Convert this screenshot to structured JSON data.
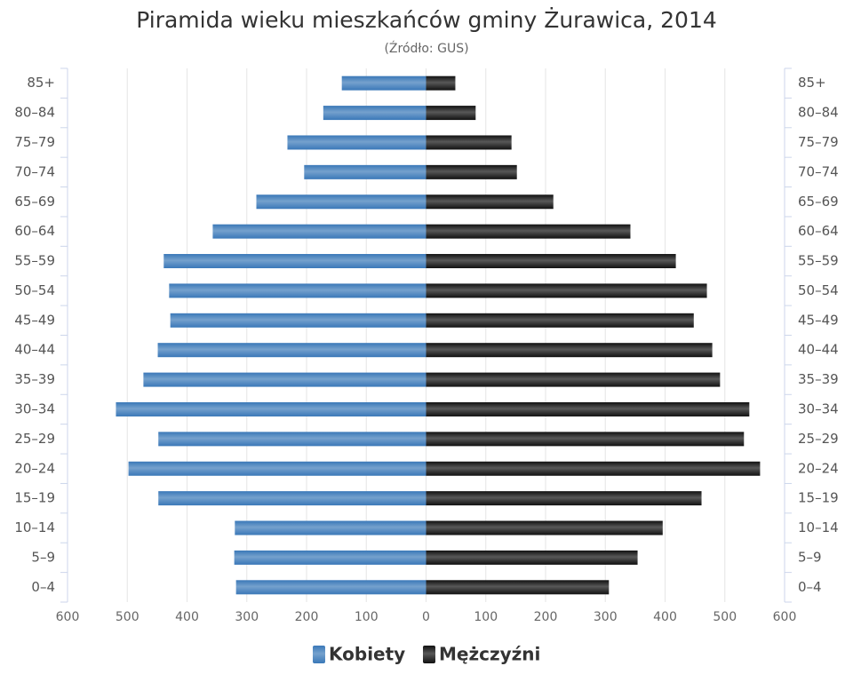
{
  "chart_data": {
    "type": "bar",
    "orientation": "horizontal",
    "title": "Piramida wieku mieszkańców gminy Żurawica, 2014",
    "subtitle": "(Źródło: GUS)",
    "categories": [
      "85+",
      "80–84",
      "75–79",
      "70–74",
      "65–69",
      "60–64",
      "55–59",
      "50–54",
      "45–49",
      "40–44",
      "35–39",
      "30–34",
      "25–29",
      "20–24",
      "15–19",
      "10–14",
      "5–9",
      "0–4"
    ],
    "series": [
      {
        "name": "Kobiety",
        "color": "#3a78b8",
        "values": [
          -141,
          -172,
          -232,
          -204,
          -284,
          -357,
          -439,
          -430,
          -428,
          -449,
          -473,
          -519,
          -448,
          -498,
          -448,
          -320,
          -321,
          -318
        ]
      },
      {
        "name": "Mężczyźni",
        "color": "#111111",
        "values": [
          49,
          83,
          143,
          152,
          213,
          342,
          418,
          470,
          448,
          479,
          492,
          541,
          532,
          559,
          461,
          396,
          354,
          306
        ]
      }
    ],
    "xlim": [
      -600,
      600
    ],
    "xticks": [
      {
        "value": -600,
        "label": "600"
      },
      {
        "value": -500,
        "label": "500"
      },
      {
        "value": -400,
        "label": "400"
      },
      {
        "value": -300,
        "label": "300"
      },
      {
        "value": -200,
        "label": "200"
      },
      {
        "value": -100,
        "label": "100"
      },
      0,
      100,
      200,
      300,
      400,
      500,
      600
    ],
    "grid": true
  }
}
